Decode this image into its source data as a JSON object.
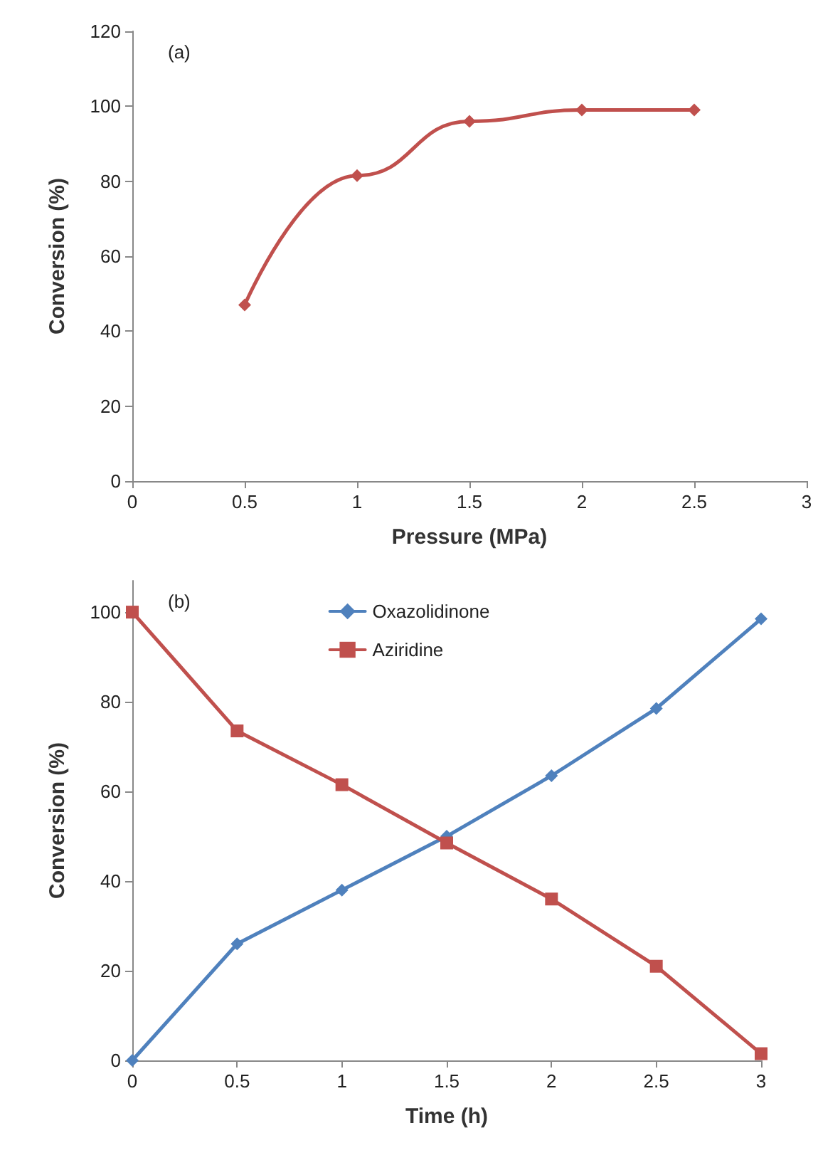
{
  "chart_data": [
    {
      "type": "line",
      "annotations": [
        "(a)"
      ],
      "xlabel": "Pressure (MPa)",
      "ylabel": "Conversion (%)",
      "x": [
        0.5,
        1,
        1.5,
        2,
        2.5
      ],
      "series": [
        {
          "color": "#c0504d",
          "values": [
            47,
            81.5,
            96,
            99,
            99
          ],
          "marker": "diamond"
        }
      ],
      "xlim": [
        0,
        3
      ],
      "xticks": [
        0,
        0.5,
        1,
        1.5,
        2,
        2.5,
        3
      ],
      "ylim": [
        0,
        120
      ],
      "yticks": [
        0,
        20,
        40,
        60,
        80,
        100,
        120
      ],
      "grid": false,
      "legend": false
    },
    {
      "type": "line",
      "annotations": [
        "(b)"
      ],
      "xlabel": "Time (h)",
      "ylabel": "Conversion (%)",
      "x": [
        0,
        0.5,
        1,
        1.5,
        2,
        2.5,
        3
      ],
      "series": [
        {
          "name": "Oxazolidinone",
          "color": "#4f81bd",
          "values": [
            0,
            26,
            38,
            50,
            63.5,
            78.5,
            98.5
          ],
          "marker": "diamond"
        },
        {
          "name": "Aziridine",
          "color": "#c0504d",
          "values": [
            100,
            73.5,
            61.5,
            48.5,
            36,
            21,
            1.5
          ],
          "marker": "square"
        }
      ],
      "xlim": [
        0,
        3
      ],
      "xticks": [
        0,
        0.5,
        1,
        1.5,
        2,
        2.5,
        3
      ],
      "ylim": [
        0,
        107
      ],
      "yticks": [
        0,
        20,
        40,
        60,
        80,
        100
      ],
      "grid": false,
      "legend": "top"
    }
  ]
}
